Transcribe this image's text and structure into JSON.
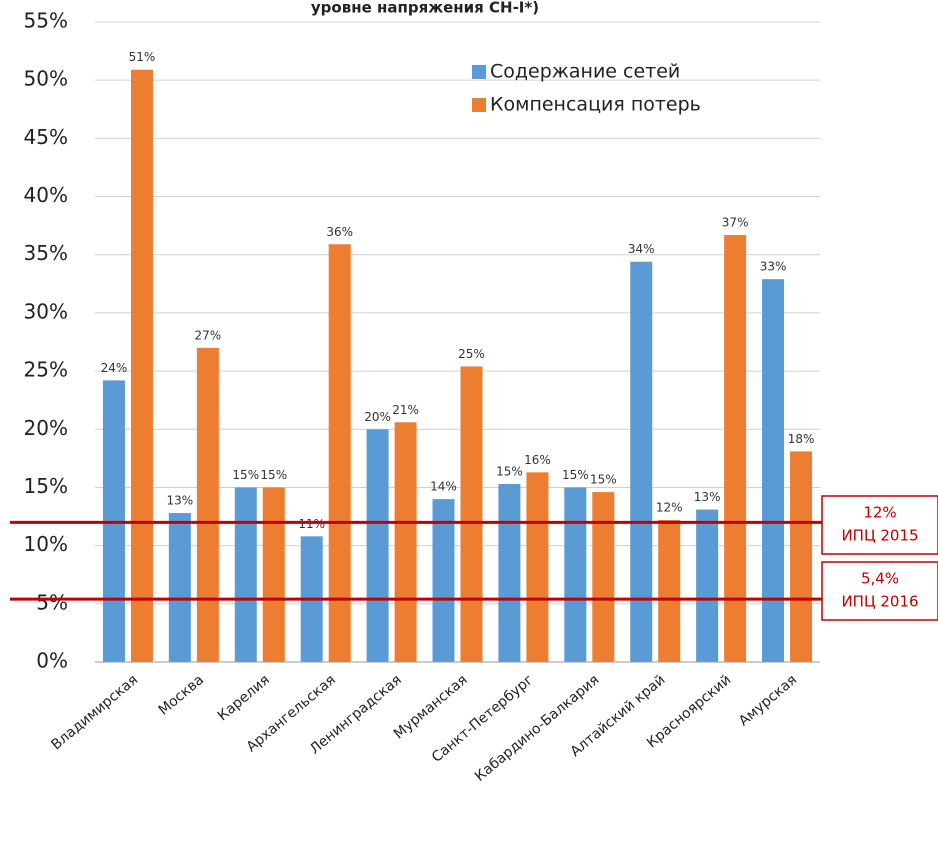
{
  "chart_data": {
    "type": "bar",
    "title": "уровне напряжения СН-I*)",
    "categories": [
      "Владимирская",
      "Москва",
      "Карелия",
      "Архангельская",
      "Ленинградская",
      "Мурманская",
      "Санкт-Петербург",
      "Кабардино-Балкария",
      "Алтайский край",
      "Красноярский",
      "Амурская"
    ],
    "series": [
      {
        "name": "Содержание сетей",
        "color": "#5b9bd5",
        "values": [
          24.2,
          12.8,
          15,
          10.8,
          20,
          14,
          15.3,
          15,
          34.4,
          13.1,
          32.9
        ],
        "value_labels": [
          "24%",
          "13%",
          "15%",
          "11%",
          "20%",
          "14%",
          "15%",
          "15%",
          "34%",
          "13%",
          "33%"
        ]
      },
      {
        "name": "Компенсация потерь",
        "color": "#ed7d31",
        "values": [
          50.9,
          27,
          15,
          35.9,
          20.6,
          25.4,
          16.3,
          14.6,
          12.2,
          36.7,
          18.1
        ],
        "value_labels": [
          "51%",
          "27%",
          "15%",
          "36%",
          "21%",
          "25%",
          "16%",
          "15%",
          "12%",
          "37%",
          "18%"
        ]
      }
    ],
    "ylim": [
      0,
      55
    ],
    "yticks": [
      {
        "value": 0,
        "label": "0%"
      },
      {
        "value": 5,
        "label": "5%"
      },
      {
        "value": 10,
        "label": "10%"
      },
      {
        "value": 15,
        "label": "15%"
      },
      {
        "value": 20,
        "label": "20%"
      },
      {
        "value": 25,
        "label": "25%"
      },
      {
        "value": 30,
        "label": "30%"
      },
      {
        "value": 35,
        "label": "35%"
      },
      {
        "value": 40,
        "label": "40%"
      },
      {
        "value": 45,
        "label": "45%"
      },
      {
        "value": 50,
        "label": "50%"
      },
      {
        "value": 55,
        "label": "55%"
      }
    ],
    "grid": true,
    "reference_lines": [
      {
        "value": 12,
        "label": "12%",
        "note": "ИПЦ 2015",
        "color": "#c00000"
      },
      {
        "value": 5.4,
        "label": "5,4%",
        "note": "ИПЦ 2016",
        "color": "#c00000"
      }
    ]
  }
}
